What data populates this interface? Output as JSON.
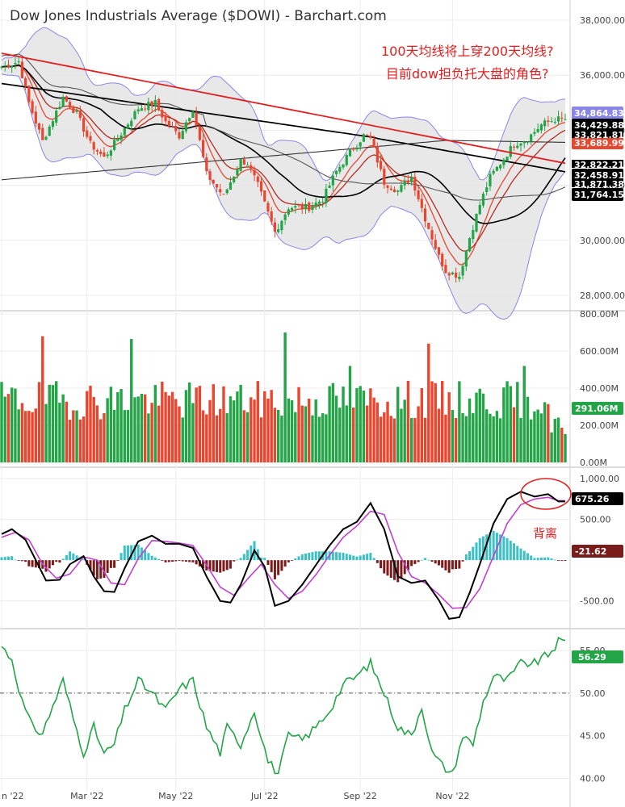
{
  "header": {
    "title": "Dow Jones Industrials Average ($DOWI) - Barchart.com"
  },
  "annotations": {
    "line1": "100天均线将上穿200天均线?",
    "line2": "目前dow担负托大盘的角色?",
    "divergence": "背离"
  },
  "colors": {
    "up": "#22a447",
    "down": "#e8462f",
    "trendline": "#e21e1e",
    "band_fill": "#e6e6e6",
    "band_edge": "#8a86e8",
    "macd_line": "#000000",
    "signal_line": "#c040d0",
    "hist_pos": "#3cc0c6",
    "hist_neg": "#7a1c1c",
    "rsi": "#22a447"
  },
  "chart_data": [
    {
      "name": "price",
      "type": "candlestick",
      "y_ticks": [
        "38,000.00",
        "36,000.00",
        "34,000.00",
        "32,000.00",
        "30,000.00",
        "28,000.00"
      ],
      "y_tick_values": [
        38000,
        36000,
        34000,
        32000,
        30000,
        28000
      ],
      "ylim": [
        27500,
        38500
      ],
      "close_path": [
        [
          0,
          36300
        ],
        [
          5,
          36500
        ],
        [
          8,
          35000
        ],
        [
          12,
          33600
        ],
        [
          18,
          35200
        ],
        [
          22,
          34600
        ],
        [
          26,
          33500
        ],
        [
          30,
          33000
        ],
        [
          34,
          33700
        ],
        [
          40,
          34800
        ],
        [
          45,
          35000
        ],
        [
          48,
          34300
        ],
        [
          52,
          33800
        ],
        [
          56,
          34800
        ],
        [
          60,
          32400
        ],
        [
          65,
          31600
        ],
        [
          70,
          32900
        ],
        [
          72,
          32800
        ],
        [
          75,
          32000
        ],
        [
          80,
          30300
        ],
        [
          84,
          31200
        ],
        [
          90,
          31200
        ],
        [
          94,
          31500
        ],
        [
          98,
          32500
        ],
        [
          102,
          33200
        ],
        [
          106,
          33800
        ],
        [
          108,
          33700
        ],
        [
          112,
          32100
        ],
        [
          116,
          31800
        ],
        [
          120,
          32300
        ],
        [
          124,
          30800
        ],
        [
          128,
          29400
        ],
        [
          130,
          28900
        ],
        [
          134,
          28700
        ],
        [
          137,
          30100
        ],
        [
          140,
          31300
        ],
        [
          143,
          32300
        ],
        [
          146,
          32800
        ],
        [
          150,
          33500
        ],
        [
          154,
          33700
        ],
        [
          158,
          34200
        ],
        [
          162,
          34400
        ]
      ],
      "trendline": {
        "from": [
          0,
          36800
        ],
        "to": [
          165,
          32800
        ]
      },
      "labels": [
        {
          "text": "34,864.83",
          "color": "#8a86e8",
          "text_color": "#ffffff"
        },
        {
          "text": "34,429.88",
          "color": "#000000",
          "text_color": "#ffffff"
        },
        {
          "text": "33,689.99",
          "color": "#e8462f",
          "text_color": "#ffffff"
        },
        {
          "text": "32,458.91",
          "color": "#000000",
          "text_color": "#ffffff"
        },
        {
          "text": "31,764.15",
          "color": "#000000",
          "text_color": "#ffffff"
        }
      ],
      "partial_labels": [
        "33,821.81",
        "32,822.21",
        "31,871.38"
      ]
    },
    {
      "name": "volume",
      "type": "bar",
      "y_ticks": [
        "800.00M",
        "600.00M",
        "400.00M",
        "200.00M",
        "0.00M"
      ],
      "y_tick_values": [
        800,
        600,
        400,
        200,
        0
      ],
      "ylim": [
        0,
        800
      ],
      "last_label": "291.06M",
      "spikes": [
        [
          12,
          680
        ],
        [
          38,
          665
        ],
        [
          83,
          700
        ],
        [
          102,
          520
        ],
        [
          125,
          640
        ],
        [
          153,
          520
        ],
        [
          161,
          550
        ]
      ]
    },
    {
      "name": "macd",
      "type": "line",
      "y_ticks": [
        "1,000.00",
        "500.00",
        "-500.00"
      ],
      "y_tick_values": [
        1000,
        500,
        -500
      ],
      "ylim": [
        -800,
        1080
      ],
      "macd_path": [
        [
          0,
          320
        ],
        [
          3,
          380
        ],
        [
          7,
          250
        ],
        [
          10,
          0
        ],
        [
          13,
          -250
        ],
        [
          17,
          -240
        ],
        [
          20,
          -50
        ],
        [
          24,
          50
        ],
        [
          27,
          -200
        ],
        [
          30,
          -380
        ],
        [
          33,
          -390
        ],
        [
          36,
          -100
        ],
        [
          40,
          230
        ],
        [
          44,
          300
        ],
        [
          48,
          200
        ],
        [
          52,
          200
        ],
        [
          56,
          150
        ],
        [
          60,
          -200
        ],
        [
          64,
          -500
        ],
        [
          67,
          -520
        ],
        [
          70,
          -300
        ],
        [
          74,
          120
        ],
        [
          77,
          -80
        ],
        [
          80,
          -560
        ],
        [
          84,
          -500
        ],
        [
          88,
          -300
        ],
        [
          92,
          -60
        ],
        [
          96,
          180
        ],
        [
          100,
          380
        ],
        [
          104,
          470
        ],
        [
          108,
          700
        ],
        [
          112,
          380
        ],
        [
          116,
          -200
        ],
        [
          120,
          -280
        ],
        [
          124,
          -250
        ],
        [
          128,
          -490
        ],
        [
          131,
          -720
        ],
        [
          134,
          -700
        ],
        [
          137,
          -400
        ],
        [
          140,
          -50
        ],
        [
          144,
          450
        ],
        [
          148,
          750
        ],
        [
          152,
          840
        ],
        [
          156,
          780
        ],
        [
          160,
          810
        ],
        [
          163,
          720
        ]
      ],
      "signal_path": [
        [
          0,
          280
        ],
        [
          4,
          340
        ],
        [
          8,
          250
        ],
        [
          12,
          -50
        ],
        [
          16,
          -220
        ],
        [
          20,
          -170
        ],
        [
          24,
          40
        ],
        [
          28,
          0
        ],
        [
          32,
          -280
        ],
        [
          36,
          -300
        ],
        [
          40,
          20
        ],
        [
          44,
          240
        ],
        [
          48,
          230
        ],
        [
          52,
          210
        ],
        [
          56,
          180
        ],
        [
          60,
          -60
        ],
        [
          64,
          -330
        ],
        [
          68,
          -430
        ],
        [
          72,
          -230
        ],
        [
          76,
          -50
        ],
        [
          80,
          -300
        ],
        [
          84,
          -470
        ],
        [
          88,
          -380
        ],
        [
          92,
          -180
        ],
        [
          96,
          60
        ],
        [
          100,
          280
        ],
        [
          104,
          420
        ],
        [
          108,
          600
        ],
        [
          112,
          560
        ],
        [
          116,
          100
        ],
        [
          120,
          -200
        ],
        [
          124,
          -280
        ],
        [
          128,
          -420
        ],
        [
          132,
          -590
        ],
        [
          136,
          -580
        ],
        [
          140,
          -350
        ],
        [
          144,
          50
        ],
        [
          148,
          450
        ],
        [
          152,
          680
        ],
        [
          156,
          750
        ],
        [
          160,
          770
        ],
        [
          163,
          730
        ]
      ],
      "labels": [
        {
          "text": "675.26",
          "color": "#000000",
          "text_color": "#ffffff"
        },
        {
          "text": "-21.62",
          "color": "#7a1c1c",
          "text_color": "#ffffff"
        }
      ]
    },
    {
      "name": "rsi",
      "type": "line",
      "y_ticks": [
        "55.00",
        "50.00",
        "45.00",
        "40.00"
      ],
      "y_tick_values": [
        55,
        50,
        45,
        40
      ],
      "ylim": [
        39,
        57
      ],
      "midline": 50,
      "rsi_path": [
        [
          0,
          55.5
        ],
        [
          3,
          54
        ],
        [
          6,
          49
        ],
        [
          9,
          46
        ],
        [
          12,
          45.3
        ],
        [
          15,
          48.5
        ],
        [
          18,
          51.5
        ],
        [
          21,
          47
        ],
        [
          24,
          43
        ],
        [
          27,
          46
        ],
        [
          30,
          42.8
        ],
        [
          33,
          44
        ],
        [
          36,
          48
        ],
        [
          40,
          51.5
        ],
        [
          44,
          50
        ],
        [
          48,
          48
        ],
        [
          52,
          50.5
        ],
        [
          56,
          51.5
        ],
        [
          60,
          46
        ],
        [
          64,
          43
        ],
        [
          66,
          46
        ],
        [
          70,
          44
        ],
        [
          74,
          48
        ],
        [
          78,
          42
        ],
        [
          81,
          40.6
        ],
        [
          84,
          45
        ],
        [
          88,
          44.5
        ],
        [
          92,
          46
        ],
        [
          96,
          48
        ],
        [
          100,
          51
        ],
        [
          104,
          52
        ],
        [
          108,
          53.5
        ],
        [
          112,
          50
        ],
        [
          116,
          46
        ],
        [
          120,
          45
        ],
        [
          123,
          48.5
        ],
        [
          126,
          43
        ],
        [
          129,
          41.5
        ],
        [
          132,
          40.5
        ],
        [
          135,
          45
        ],
        [
          138,
          44
        ],
        [
          141,
          49
        ],
        [
          144,
          52
        ],
        [
          148,
          51.5
        ],
        [
          152,
          53.5
        ],
        [
          156,
          53.5
        ],
        [
          160,
          54.5
        ],
        [
          163,
          56
        ]
      ],
      "last_label": "56.29"
    }
  ],
  "x_axis": {
    "labels": [
      "n '22",
      "Mar '22",
      "May '22",
      "Jul '22",
      "Sep '22",
      "Nov '22"
    ],
    "label_bars": [
      0,
      25,
      51,
      77,
      105,
      132
    ]
  }
}
